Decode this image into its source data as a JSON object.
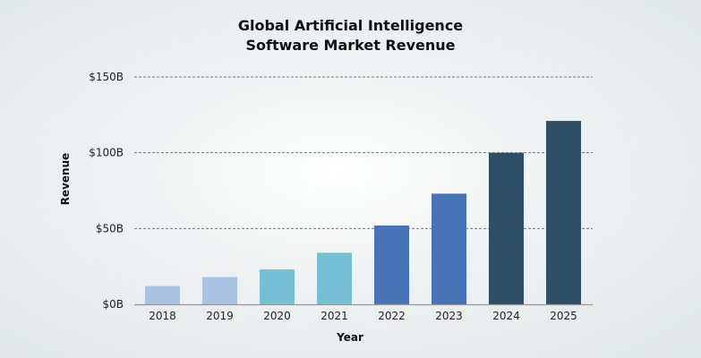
{
  "chart_data": {
    "type": "bar",
    "title_lines": [
      "Global Artificial Intelligence",
      "Software Market Revenue"
    ],
    "xlabel": "Year",
    "ylabel": "Revenue",
    "categories": [
      "2018",
      "2019",
      "2020",
      "2021",
      "2022",
      "2023",
      "2024",
      "2025"
    ],
    "values": [
      12,
      18,
      23,
      34,
      52,
      73,
      100,
      121
    ],
    "unit": "billion USD",
    "ylim": [
      0,
      150
    ],
    "yticks": [
      0,
      50,
      100,
      150
    ],
    "ytick_labels": [
      "$0B",
      "$50B",
      "$100B",
      "$150B"
    ],
    "grid": "horizontal dashed",
    "legend": "none",
    "colors": [
      "#a8c3e2",
      "#a8c3e2",
      "#76c0d5",
      "#76c0d5",
      "#4774b6",
      "#4774b6",
      "#2e4f68",
      "#2e4f68"
    ]
  }
}
